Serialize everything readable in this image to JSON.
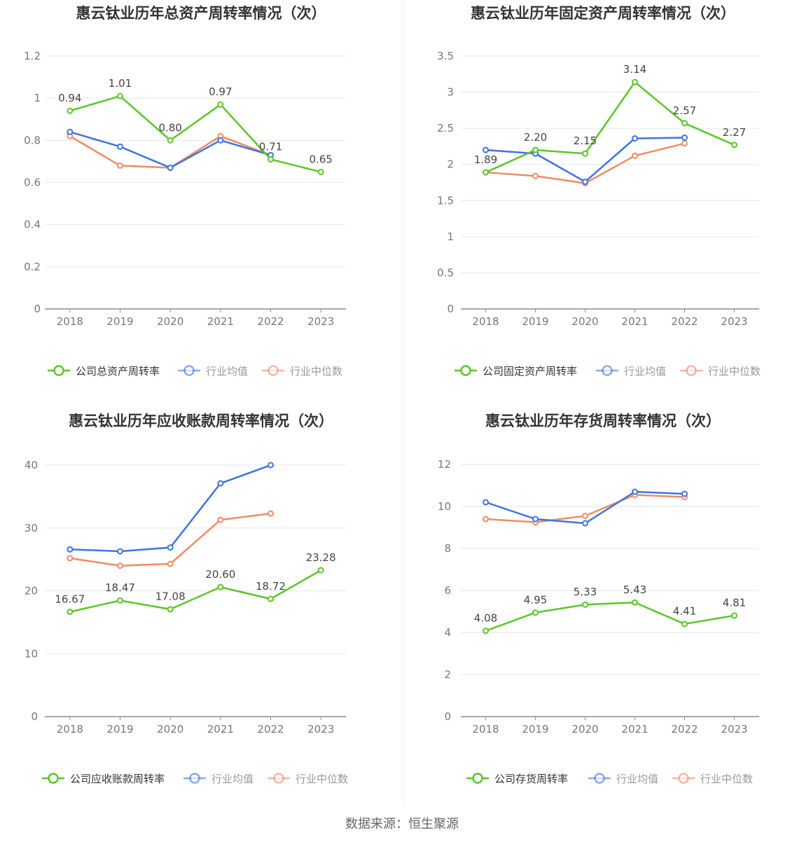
{
  "colors": {
    "company": "#5bc627",
    "avg": "#3f74dd",
    "median": "#f28a64",
    "grid": "#e6e6ee",
    "axis": "#8c8c9c"
  },
  "charts": [
    {
      "chart_data": {
        "type": "line",
        "title": "惠云钛业历年总资产周转率情况（次）",
        "categories": [
          "2018",
          "2019",
          "2020",
          "2021",
          "2022",
          "2023"
        ],
        "ylim": [
          0,
          1.2
        ],
        "yticks": [
          0,
          0.2,
          0.4,
          0.6,
          0.8,
          1,
          1.2
        ],
        "ytick_labels": [
          "0",
          "0.2",
          "0.4",
          "0.6",
          "0.8",
          "1",
          "1.2"
        ],
        "series": [
          {
            "name": "公司总资产周转率",
            "values": [
              0.94,
              1.01,
              0.8,
              0.97,
              0.71,
              0.65
            ],
            "labels": [
              "0.94",
              "1.01",
              "0.80",
              "0.97",
              "0.71",
              "0.65"
            ]
          },
          {
            "name": "行业均值",
            "values": [
              0.84,
              0.77,
              0.67,
              0.8,
              0.73,
              null
            ]
          },
          {
            "name": "行业中位数",
            "values": [
              0.82,
              0.68,
              0.67,
              0.82,
              0.73,
              null
            ]
          }
        ],
        "legend": "bottom"
      }
    },
    {
      "chart_data": {
        "type": "line",
        "title": "惠云钛业历年固定资产周转率情况（次）",
        "categories": [
          "2018",
          "2019",
          "2020",
          "2021",
          "2022",
          "2023"
        ],
        "ylim": [
          0,
          3.5
        ],
        "yticks": [
          0,
          0.5,
          1,
          1.5,
          2,
          2.5,
          3,
          3.5
        ],
        "ytick_labels": [
          "0",
          "0.5",
          "1",
          "1.5",
          "2",
          "2.5",
          "3",
          "3.5"
        ],
        "series": [
          {
            "name": "公司固定资产周转率",
            "values": [
              1.89,
              2.2,
              2.15,
              3.14,
              2.57,
              2.27
            ],
            "labels": [
              "1.89",
              "2.20",
              "2.15",
              "3.14",
              "2.57",
              "2.27"
            ]
          },
          {
            "name": "行业均值",
            "values": [
              2.2,
              2.15,
              1.76,
              2.36,
              2.37,
              null
            ]
          },
          {
            "name": "行业中位数",
            "values": [
              1.89,
              1.84,
              1.74,
              2.12,
              2.29,
              null
            ]
          }
        ],
        "legend": "bottom"
      }
    },
    {
      "chart_data": {
        "type": "line",
        "title": "惠云钛业历年应收账款周转率情况（次）",
        "categories": [
          "2018",
          "2019",
          "2020",
          "2021",
          "2022",
          "2023"
        ],
        "ylim": [
          0,
          40
        ],
        "yticks": [
          0,
          10,
          20,
          30,
          40
        ],
        "ytick_labels": [
          "0",
          "10",
          "20",
          "30",
          "40"
        ],
        "series": [
          {
            "name": "公司应收账款周转率",
            "values": [
              16.67,
              18.47,
              17.08,
              20.6,
              18.72,
              23.28
            ],
            "labels": [
              "16.67",
              "18.47",
              "17.08",
              "20.60",
              "18.72",
              "23.28"
            ]
          },
          {
            "name": "行业均值",
            "values": [
              26.6,
              26.3,
              26.9,
              37.1,
              40.0,
              null
            ]
          },
          {
            "name": "行业中位数",
            "values": [
              25.2,
              24.0,
              24.3,
              31.3,
              32.3,
              null
            ]
          }
        ],
        "legend": "bottom"
      }
    },
    {
      "chart_data": {
        "type": "line",
        "title": "惠云钛业历年存货周转率情况（次）",
        "categories": [
          "2018",
          "2019",
          "2020",
          "2021",
          "2022",
          "2023"
        ],
        "ylim": [
          0,
          12
        ],
        "yticks": [
          0,
          2,
          4,
          6,
          8,
          10,
          12
        ],
        "ytick_labels": [
          "0",
          "2",
          "4",
          "6",
          "8",
          "10",
          "12"
        ],
        "series": [
          {
            "name": "公司存货周转率",
            "values": [
              4.08,
              4.95,
              5.33,
              5.43,
              4.41,
              4.81
            ],
            "labels": [
              "4.08",
              "4.95",
              "5.33",
              "5.43",
              "4.41",
              "4.81"
            ]
          },
          {
            "name": "行业均值",
            "values": [
              10.2,
              9.4,
              9.2,
              10.7,
              10.6,
              null
            ]
          },
          {
            "name": "行业中位数",
            "values": [
              9.4,
              9.25,
              9.55,
              10.55,
              10.45,
              null
            ]
          }
        ],
        "legend": "bottom"
      }
    }
  ],
  "footer": {
    "source": "数据来源：恒生聚源"
  }
}
